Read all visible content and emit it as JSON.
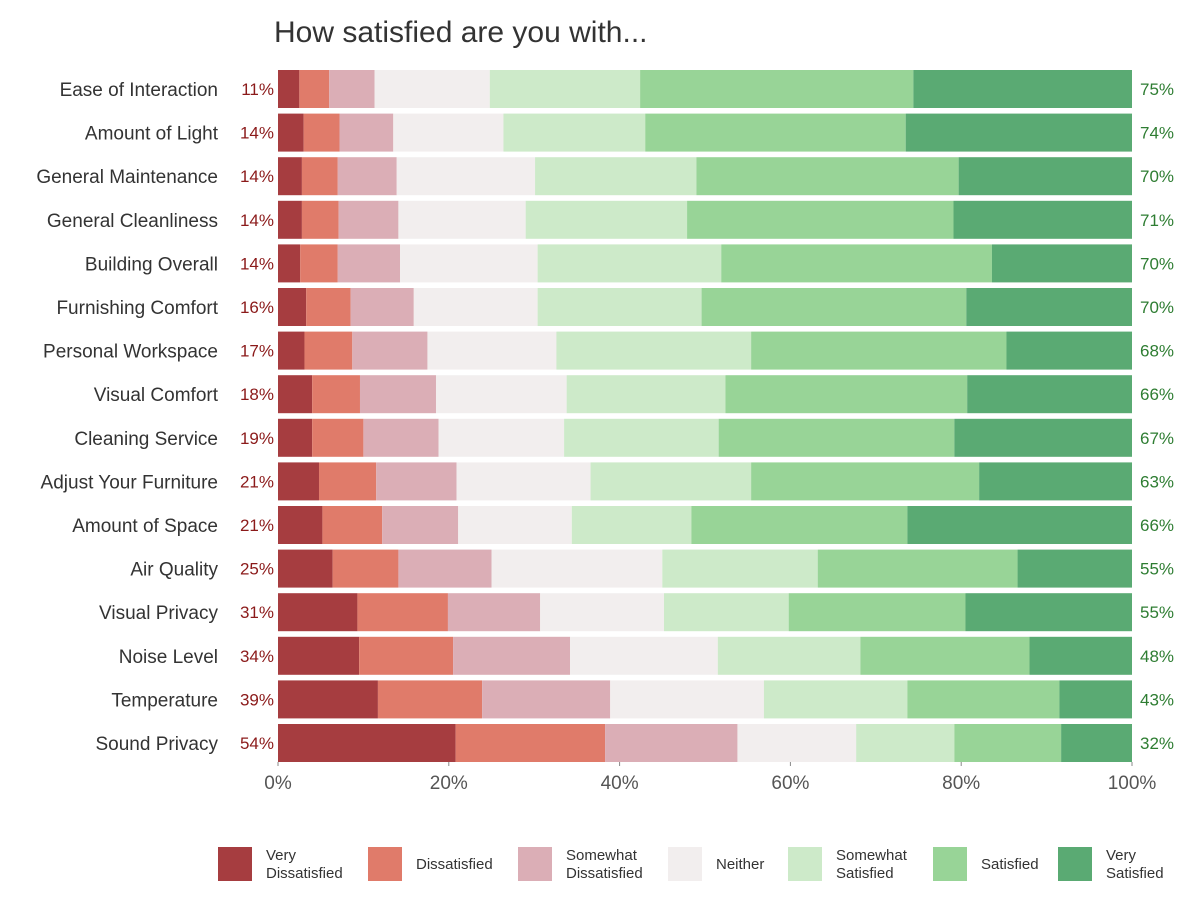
{
  "chart_data": {
    "type": "bar",
    "orientation": "horizontal-stacked-100",
    "title": "How satisfied are you with...",
    "categories": [
      "Ease of Interaction",
      "Amount of Light",
      "General Maintenance",
      "General Cleanliness",
      "Building Overall",
      "Furnishing Comfort",
      "Personal Workspace",
      "Visual Comfort",
      "Cleaning Service",
      "Adjust Your Furniture",
      "Amount of Space",
      "Air Quality",
      "Visual Privacy",
      "Noise Level",
      "Temperature",
      "Sound Privacy"
    ],
    "dissatisfied_labels": [
      "11%",
      "14%",
      "14%",
      "14%",
      "14%",
      "16%",
      "17%",
      "18%",
      "19%",
      "21%",
      "21%",
      "25%",
      "31%",
      "34%",
      "39%",
      "54%"
    ],
    "satisfied_labels": [
      "75%",
      "74%",
      "70%",
      "71%",
      "70%",
      "70%",
      "68%",
      "66%",
      "67%",
      "63%",
      "66%",
      "55%",
      "55%",
      "48%",
      "43%",
      "32%"
    ],
    "series": [
      {
        "name": "Very Dissatisfied",
        "legend_lines": [
          "Very",
          "Dissatisfied"
        ],
        "color": "#a63d40",
        "values": [
          2.5,
          3,
          2.8,
          2.8,
          2.6,
          3.3,
          3.1,
          4,
          4,
          4.8,
          5.2,
          6.4,
          9.3,
          9.5,
          11.7,
          20.8
        ]
      },
      {
        "name": "Dissatisfied",
        "legend_lines": [
          "Dissatisfied"
        ],
        "color": "#e07b6a",
        "values": [
          3.5,
          4.2,
          4.2,
          4.3,
          4.4,
          5.2,
          5.6,
          5.6,
          6,
          6.7,
          7,
          7.7,
          10.6,
          11,
          12.2,
          17.5
        ]
      },
      {
        "name": "Somewhat Dissatisfied",
        "legend_lines": [
          "Somewhat",
          "Dissatisfied"
        ],
        "color": "#dbaeb6",
        "values": [
          5.3,
          6.3,
          6.9,
          7,
          7.3,
          7.4,
          8.8,
          8.9,
          8.8,
          9.4,
          8.9,
          10.9,
          10.8,
          13.7,
          15,
          15.5
        ]
      },
      {
        "name": "Neither",
        "legend_lines": [
          "Neither"
        ],
        "color": "#f2eeee",
        "values": [
          13.5,
          12.9,
          16.2,
          14.9,
          16.1,
          14.5,
          15.1,
          15.3,
          14.7,
          15.7,
          13.3,
          20,
          14.5,
          17.3,
          18,
          13.9
        ]
      },
      {
        "name": "Somewhat Satisfied",
        "legend_lines": [
          "Somewhat",
          "Satisfied"
        ],
        "color": "#cdeac9",
        "values": [
          17.6,
          16.6,
          18.9,
          18.9,
          21.5,
          19.2,
          22.8,
          18.6,
          18.1,
          18.8,
          14,
          18.2,
          14.6,
          16.7,
          16.8,
          11.5
        ]
      },
      {
        "name": "Satisfied",
        "legend_lines": [
          "Satisfied"
        ],
        "color": "#98d497",
        "values": [
          32,
          30.5,
          30.7,
          31.2,
          31.7,
          31,
          29.9,
          28.3,
          27.6,
          26.7,
          25.3,
          23.4,
          20.7,
          19.8,
          17.8,
          12.5
        ]
      },
      {
        "name": "Very Satisfied",
        "legend_lines": [
          "Very",
          "Satisfied"
        ],
        "color": "#5aaa73",
        "values": [
          25.6,
          26.5,
          20.3,
          20.9,
          16.4,
          19.4,
          14.7,
          19.3,
          20.8,
          17.9,
          26.3,
          13.4,
          19.5,
          12,
          8.5,
          8.3
        ]
      }
    ],
    "xaxis": {
      "ticks": [
        "0%",
        "20%",
        "40%",
        "60%",
        "80%",
        "100%"
      ],
      "xlim": [
        0,
        100
      ]
    },
    "xlabel": "",
    "ylabel": "",
    "grid": false,
    "legend_position": "bottom"
  }
}
